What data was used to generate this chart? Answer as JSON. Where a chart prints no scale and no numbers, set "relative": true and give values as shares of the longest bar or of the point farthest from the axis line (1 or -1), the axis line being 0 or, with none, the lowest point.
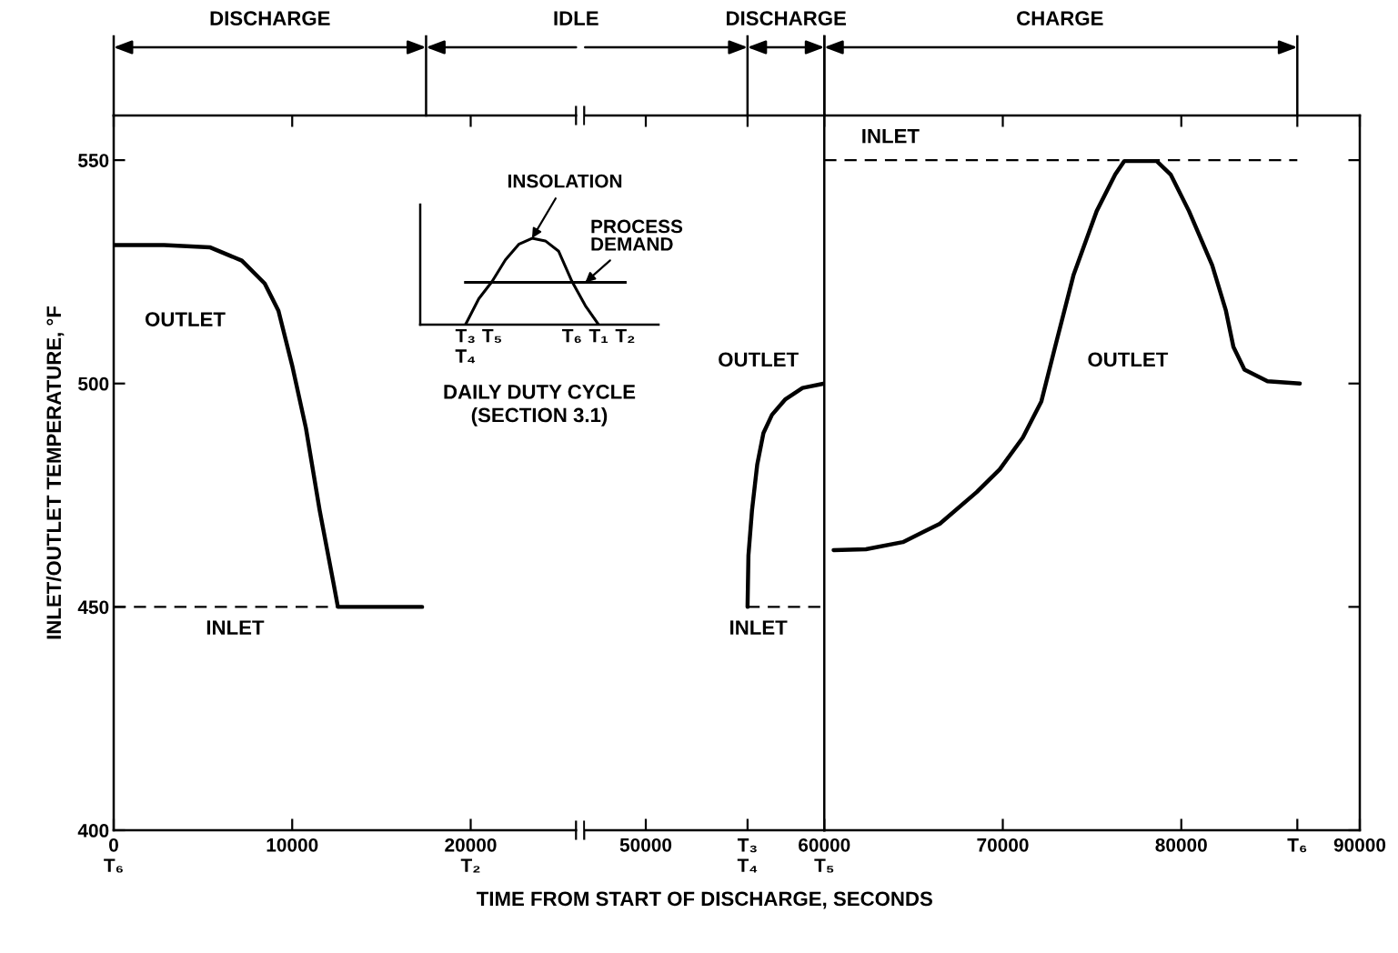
{
  "chart_data": [
    {
      "type": "line",
      "ylabel": "INLET/OUTLET TEMPERATURE, °F",
      "xlim": [
        0,
        25900
      ],
      "ylim": [
        400,
        560
      ],
      "xticks": [
        {
          "value": 0,
          "label": "0\nT₆"
        },
        10000,
        {
          "value": 20000,
          "label": "20000\nT₂"
        }
      ],
      "yticks": [
        400,
        450,
        500,
        550
      ],
      "grid": false,
      "legend": false,
      "annotations": [
        "DISCHARGE",
        "IDLE"
      ],
      "series": [
        {
          "name": "OUTLET",
          "color": "#000000",
          "line_style": "solid",
          "x": [
            0,
            2820,
            5380,
            7180,
            8460,
            9230,
            10000,
            10770,
            11540,
            12310,
            12560,
            17280
          ],
          "values": [
            531,
            531,
            530.5,
            527.5,
            522.4,
            516.3,
            504,
            490,
            471.6,
            455.4,
            450,
            450
          ]
        },
        {
          "name": "INLET",
          "color": "#000000",
          "line_style": "dashed",
          "x": [
            0,
            17280
          ],
          "values": [
            450,
            450
          ]
        }
      ]
    },
    {
      "type": "line",
      "xlabel": "TIME FROM START OF DISCHARGE, SECONDS",
      "xlim": [
        46600,
        60000
      ],
      "ylim": [
        400,
        560
      ],
      "xticks": [
        50000,
        {
          "value": 55700,
          "label": "T₃\nT₄"
        },
        {
          "value": 60000,
          "label": "60000\nT₅"
        }
      ],
      "tick_labels": "x",
      "grid": false,
      "legend": false,
      "annotations": [
        "DISCHARGE"
      ],
      "series": [
        {
          "name": "OUTLET",
          "color": "#000000",
          "line_style": "solid",
          "x": [
            55700,
            55750,
            55950,
            56240,
            56590,
            57070,
            57800,
            58780,
            60000
          ],
          "values": [
            450,
            461.5,
            471.6,
            481.8,
            488.9,
            493,
            496.4,
            499,
            500
          ]
        },
        {
          "name": "INLET",
          "color": "#000000",
          "line_style": "dashed",
          "x": [
            55700,
            60000
          ],
          "values": [
            450,
            450
          ]
        }
      ]
    },
    {
      "type": "line",
      "xlim": [
        60000,
        90000
      ],
      "ylim": [
        400,
        560
      ],
      "xticks": [
        {
          "value": 60000,
          "label": null
        },
        70000,
        80000,
        {
          "value": 86500,
          "label": "T₆"
        },
        90000
      ],
      "yticks": [
        400,
        450,
        500,
        550
      ],
      "tick_labels": "x",
      "grid": false,
      "legend": false,
      "annotations": [
        "CHARGE"
      ],
      "series": [
        {
          "name": "INLET",
          "color": "#000000",
          "line_style": "dashed",
          "x": [
            60000,
            86500
          ],
          "values": [
            550,
            550
          ]
        },
        {
          "name": "OUTLET",
          "color": "#000000",
          "line_style": "solid",
          "x": [
            60520,
            62330,
            64400,
            66470,
            68540,
            69830,
            71120,
            72160,
            72930,
            73970,
            75260,
            76300,
            76810,
            78620,
            79400,
            80430,
            81730,
            82500,
            82920,
            83540,
            84830,
            86640
          ],
          "values": [
            462.7,
            462.9,
            464.5,
            468.6,
            475.7,
            480.8,
            487.9,
            496,
            508.2,
            524.4,
            538.6,
            546.8,
            549.8,
            549.8,
            546.8,
            538.6,
            526.5,
            516.3,
            508.2,
            503.1,
            500.5,
            500
          ]
        }
      ]
    },
    {
      "type": "line",
      "relative": true,
      "ref_lines": [
        {
          "axis": "y",
          "value": 0
        }
      ],
      "xlabel": "DAILY DUTY CYCLE\n(SECTION 3.1)",
      "categories": [
        "T₃\nT₄",
        null,
        "T₅",
        null,
        null,
        null,
        null,
        null,
        "T₆",
        null,
        "T₁",
        null,
        "T₂"
      ],
      "series": [
        {
          "name": "INSOLATION",
          "color": "#000000",
          "values": [
            0,
            0.3,
            0.5,
            0.75,
            0.93,
            1.0,
            0.97,
            0.85,
            0.5,
            0.22,
            0,
            null,
            null
          ]
        },
        {
          "name": "PROCESS\nDEMAND",
          "color": "#000000",
          "values": [
            0.49,
            0.49,
            0.49,
            0.49,
            0.49,
            0.49,
            0.49,
            0.49,
            0.49,
            0.49,
            0.49,
            0.49,
            0.49
          ]
        }
      ]
    }
  ]
}
